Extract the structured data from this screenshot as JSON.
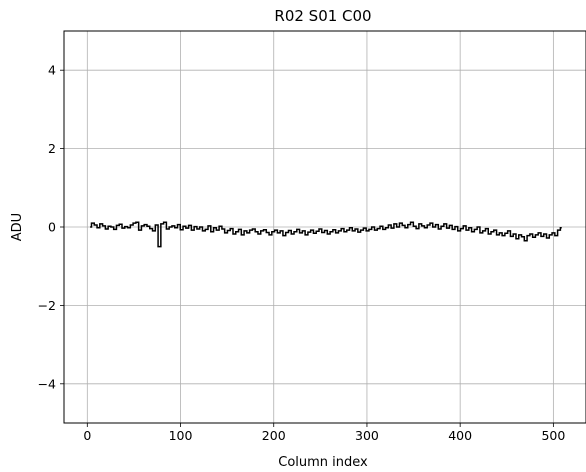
{
  "chart_data": {
    "type": "line",
    "title": "R02 S01 C00",
    "xlabel": "Column index",
    "ylabel": "ADU",
    "xlim": [
      -25,
      535
    ],
    "ylim": [
      -5,
      5
    ],
    "xticks": [
      0,
      100,
      200,
      300,
      400,
      500
    ],
    "xtick_labels": [
      "0",
      "100",
      "200",
      "300",
      "400",
      "500"
    ],
    "yticks": [
      -4,
      -2,
      0,
      2,
      4
    ],
    "ytick_labels": [
      "−4",
      "−2",
      "0",
      "2",
      "4"
    ],
    "grid": true,
    "step": true,
    "line_color": "#000000",
    "grid_color": "#b0b0b0",
    "series": [
      {
        "x_start": 3,
        "x_end": 509,
        "values": [
          0.0,
          0.1,
          0.05,
          -0.02,
          0.08,
          0.03,
          -0.05,
          0.02,
          0.0,
          -0.06,
          0.04,
          0.07,
          -0.03,
          0.01,
          -0.02,
          0.05,
          0.1,
          0.12,
          -0.08,
          0.03,
          0.06,
          0.02,
          -0.04,
          -0.1,
          0.05,
          -0.5,
          0.08,
          0.12,
          -0.05,
          0.0,
          0.03,
          -0.02,
          0.06,
          -0.07,
          0.02,
          -0.03,
          0.04,
          -0.08,
          0.01,
          -0.05,
          0.0,
          -0.1,
          -0.06,
          0.03,
          -0.12,
          -0.02,
          -0.08,
          0.02,
          -0.05,
          -0.15,
          -0.09,
          -0.04,
          -0.18,
          -0.12,
          -0.06,
          -0.2,
          -0.1,
          -0.15,
          -0.08,
          -0.05,
          -0.12,
          -0.18,
          -0.1,
          -0.07,
          -0.14,
          -0.2,
          -0.12,
          -0.08,
          -0.15,
          -0.1,
          -0.22,
          -0.14,
          -0.09,
          -0.18,
          -0.12,
          -0.06,
          -0.15,
          -0.1,
          -0.2,
          -0.13,
          -0.08,
          -0.16,
          -0.11,
          -0.05,
          -0.14,
          -0.09,
          -0.18,
          -0.12,
          -0.07,
          -0.15,
          -0.1,
          -0.04,
          -0.12,
          -0.08,
          -0.02,
          -0.1,
          -0.05,
          -0.13,
          -0.08,
          -0.03,
          -0.1,
          -0.06,
          0.0,
          -0.08,
          -0.04,
          0.02,
          -0.06,
          -0.02,
          0.05,
          -0.03,
          0.08,
          0.0,
          0.1,
          0.04,
          -0.02,
          0.06,
          0.12,
          0.02,
          -0.04,
          0.08,
          0.03,
          -0.02,
          0.05,
          0.1,
          0.0,
          0.06,
          -0.05,
          0.02,
          0.08,
          -0.03,
          0.04,
          -0.06,
          0.01,
          -0.1,
          -0.04,
          0.03,
          -0.08,
          -0.02,
          -0.12,
          -0.06,
          0.0,
          -0.15,
          -0.1,
          -0.04,
          -0.18,
          -0.12,
          -0.08,
          -0.2,
          -0.15,
          -0.22,
          -0.16,
          -0.1,
          -0.24,
          -0.18,
          -0.3,
          -0.2,
          -0.25,
          -0.35,
          -0.22,
          -0.18,
          -0.26,
          -0.2,
          -0.15,
          -0.24,
          -0.18,
          -0.28,
          -0.2,
          -0.15,
          -0.22,
          -0.08,
          -0.02
        ]
      }
    ]
  }
}
